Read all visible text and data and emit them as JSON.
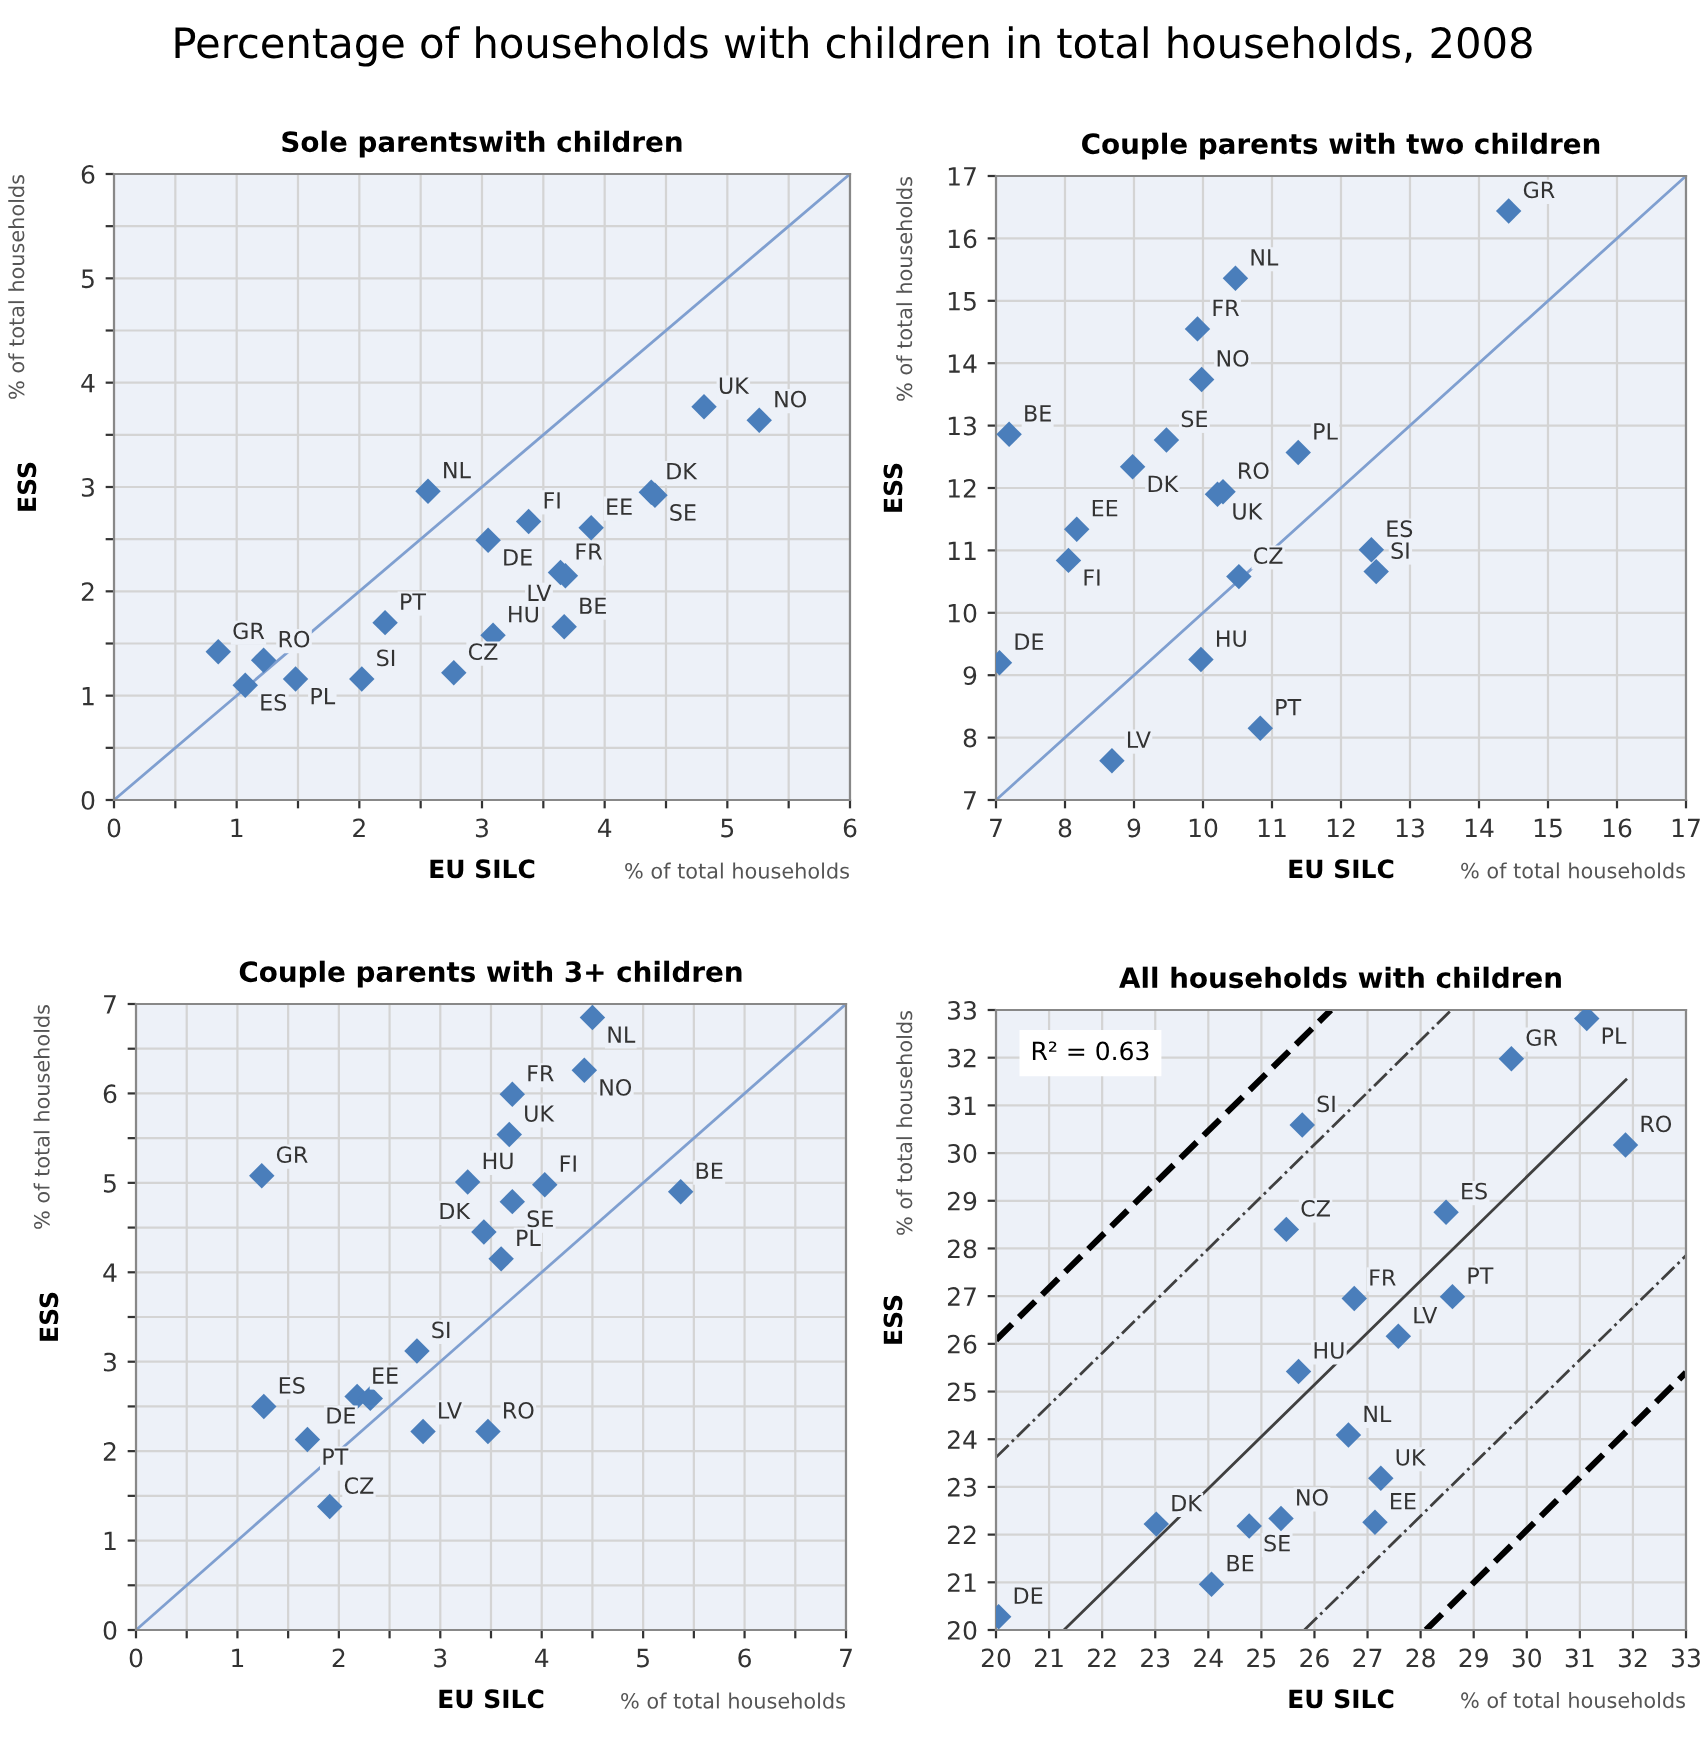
{
  "chart_data": [
    {
      "type": "other",
      "title": "Percentage of households with children in total households, 2008"
    },
    {
      "type": "scatter",
      "title": "Sole parentswith children",
      "xlabel": "EU SILC",
      "ylabel": "ESS",
      "grid": true,
      "xlim": [
        0,
        6
      ],
      "ylim": [
        0,
        6
      ],
      "xticks": [
        0,
        {
          "value": 0.5,
          "label": null
        },
        1,
        {
          "value": 1.5,
          "label": null
        },
        2,
        {
          "value": 2.5,
          "label": null
        },
        3,
        {
          "value": 3.5,
          "label": null
        },
        4,
        {
          "value": 4.5,
          "label": null
        },
        5,
        {
          "value": 5.5,
          "label": null
        },
        6
      ],
      "yticks": [
        0,
        {
          "value": 0.5,
          "label": null
        },
        1,
        {
          "value": 1.5,
          "label": null
        },
        2,
        {
          "value": 2.5,
          "label": null
        },
        3,
        {
          "value": 3.5,
          "label": null
        },
        4,
        {
          "value": 4.5,
          "label": null
        },
        5,
        {
          "value": 5.5,
          "label": null
        },
        6
      ],
      "series": [
        {
          "type": "line",
          "color": "#7f9fd0",
          "x": [
            0,
            6
          ],
          "values": [
            0,
            6
          ],
          "line_style": "solid"
        },
        {
          "type": "scatter",
          "marker": "diamond",
          "color": "#4a7ebb",
          "x": [
            0.85,
            1.22,
            1.07,
            1.48,
            2.02,
            2.21,
            2.77,
            3.09,
            3.67,
            2.56,
            3.05,
            3.38,
            3.89,
            3.64,
            3.68,
            4.38,
            4.41,
            4.81,
            5.26
          ],
          "values": [
            1.42,
            1.34,
            1.1,
            1.16,
            1.16,
            1.7,
            1.22,
            1.58,
            1.66,
            2.96,
            2.49,
            2.67,
            2.61,
            2.18,
            2.15,
            2.95,
            2.92,
            3.77,
            3.64
          ]
        }
      ],
      "annotations": [
        "% of total households",
        "% of total households",
        {
          "text": "GR",
          "x": 0.85,
          "y": 1.42
        },
        {
          "text": "RO",
          "x": 1.22,
          "y": 1.34
        },
        {
          "text": "ES",
          "x": 1.07,
          "y": 1.1
        },
        {
          "text": "PL",
          "x": 1.48,
          "y": 1.16
        },
        {
          "text": "SI",
          "x": 2.02,
          "y": 1.16
        },
        {
          "text": "PT",
          "x": 2.21,
          "y": 1.7
        },
        {
          "text": "CZ",
          "x": 2.77,
          "y": 1.22
        },
        {
          "text": "HU",
          "x": 3.09,
          "y": 1.58
        },
        {
          "text": "BE",
          "x": 3.67,
          "y": 1.66
        },
        {
          "text": "NL",
          "x": 2.56,
          "y": 2.96
        },
        {
          "text": "DE",
          "x": 3.05,
          "y": 2.49
        },
        {
          "text": "FI",
          "x": 3.38,
          "y": 2.67
        },
        {
          "text": "EE",
          "x": 3.89,
          "y": 2.61
        },
        {
          "text": "FR",
          "x": 3.64,
          "y": 2.18
        },
        {
          "text": "LV",
          "x": 3.68,
          "y": 2.15
        },
        {
          "text": "DK",
          "x": 4.38,
          "y": 2.95
        },
        {
          "text": "SE",
          "x": 4.41,
          "y": 2.92
        },
        {
          "text": "UK",
          "x": 4.81,
          "y": 3.77
        },
        {
          "text": "NO",
          "x": 5.26,
          "y": 3.64
        }
      ]
    },
    {
      "type": "scatter",
      "title": "Couple parents with two children",
      "xlabel": "EU SILC",
      "ylabel": "ESS",
      "grid": true,
      "xlim": [
        7,
        17
      ],
      "ylim": [
        7,
        17
      ],
      "xticks": [
        7,
        8,
        9,
        10,
        11,
        12,
        13,
        14,
        15,
        16,
        17
      ],
      "yticks": [
        7,
        8,
        9,
        10,
        11,
        12,
        13,
        14,
        15,
        16,
        17
      ],
      "series": [
        {
          "type": "line",
          "color": "#7f9fd0",
          "x": [
            7,
            17
          ],
          "values": [
            7,
            17
          ],
          "line_style": "solid"
        },
        {
          "type": "scatter",
          "marker": "diamond",
          "color": "#4a7ebb",
          "x": [
            14.43,
            10.47,
            9.92,
            9.98,
            7.19,
            9.47,
            8.98,
            10.29,
            10.21,
            11.38,
            8.17,
            8.05,
            12.44,
            12.51,
            10.52,
            7.05,
            9.97,
            10.83,
            8.68
          ],
          "values": [
            16.44,
            15.36,
            14.55,
            13.74,
            12.86,
            12.77,
            12.34,
            11.94,
            11.9,
            12.57,
            11.34,
            10.84,
            11.01,
            10.66,
            10.58,
            9.2,
            9.25,
            8.15,
            7.63
          ]
        }
      ],
      "annotations": [
        "% of total households",
        "% of total households",
        {
          "text": "GR",
          "x": 14.43,
          "y": 16.44
        },
        {
          "text": "NL",
          "x": 10.47,
          "y": 15.36
        },
        {
          "text": "FR",
          "x": 9.92,
          "y": 14.55
        },
        {
          "text": "NO",
          "x": 9.98,
          "y": 13.74
        },
        {
          "text": "BE",
          "x": 7.19,
          "y": 12.86
        },
        {
          "text": "SE",
          "x": 9.47,
          "y": 12.77
        },
        {
          "text": "DK",
          "x": 8.98,
          "y": 12.34
        },
        {
          "text": "RO",
          "x": 10.29,
          "y": 11.94
        },
        {
          "text": "UK",
          "x": 10.21,
          "y": 11.9
        },
        {
          "text": "PL",
          "x": 11.38,
          "y": 12.57
        },
        {
          "text": "EE",
          "x": 8.17,
          "y": 11.34
        },
        {
          "text": "FI",
          "x": 8.05,
          "y": 10.84
        },
        {
          "text": "ES",
          "x": 12.44,
          "y": 11.01
        },
        {
          "text": "SI",
          "x": 12.51,
          "y": 10.66
        },
        {
          "text": "CZ",
          "x": 10.52,
          "y": 10.58
        },
        {
          "text": "DE",
          "x": 7.05,
          "y": 9.2
        },
        {
          "text": "HU",
          "x": 9.97,
          "y": 9.25
        },
        {
          "text": "PT",
          "x": 10.83,
          "y": 8.15
        },
        {
          "text": "LV",
          "x": 8.68,
          "y": 7.63
        }
      ]
    },
    {
      "type": "scatter",
      "title": "Couple parents with 3+ children",
      "xlabel": "EU SILC",
      "ylabel": "ESS",
      "grid": true,
      "xlim": [
        0,
        7
      ],
      "ylim": [
        0,
        7
      ],
      "xticks": [
        0,
        {
          "value": 0.5,
          "label": null
        },
        1,
        {
          "value": 1.5,
          "label": null
        },
        2,
        {
          "value": 2.5,
          "label": null
        },
        3,
        {
          "value": 3.5,
          "label": null
        },
        4,
        {
          "value": 4.5,
          "label": null
        },
        5,
        {
          "value": 5.5,
          "label": null
        },
        6,
        {
          "value": 6.5,
          "label": null
        },
        7
      ],
      "yticks": [
        0,
        {
          "value": 0.5,
          "label": null
        },
        1,
        {
          "value": 1.5,
          "label": null
        },
        2,
        {
          "value": 2.5,
          "label": null
        },
        3,
        {
          "value": 3.5,
          "label": null
        },
        4,
        {
          "value": 4.5,
          "label": null
        },
        5,
        {
          "value": 5.5,
          "label": null
        },
        6,
        {
          "value": 6.5,
          "label": null
        },
        7
      ],
      "series": [
        {
          "type": "line",
          "color": "#7f9fd0",
          "x": [
            0,
            7
          ],
          "values": [
            0,
            7
          ],
          "line_style": "solid"
        },
        {
          "type": "scatter",
          "marker": "diamond",
          "color": "#4a7ebb",
          "x": [
            4.5,
            4.42,
            3.71,
            3.68,
            1.24,
            3.27,
            4.03,
            3.71,
            5.37,
            3.43,
            3.6,
            2.77,
            2.18,
            2.31,
            1.26,
            1.69,
            2.83,
            3.47,
            1.91
          ],
          "values": [
            6.85,
            6.26,
            5.99,
            5.54,
            5.08,
            5.01,
            4.98,
            4.79,
            4.9,
            4.45,
            4.15,
            3.12,
            2.61,
            2.59,
            2.5,
            2.13,
            2.22,
            2.22,
            1.38
          ]
        }
      ],
      "annotations": [
        "% of total households",
        "% of total households",
        {
          "text": "NL",
          "x": 4.5,
          "y": 6.85
        },
        {
          "text": "NO",
          "x": 4.42,
          "y": 6.26
        },
        {
          "text": "FR",
          "x": 3.71,
          "y": 5.99
        },
        {
          "text": "UK",
          "x": 3.68,
          "y": 5.54
        },
        {
          "text": "GR",
          "x": 1.24,
          "y": 5.08
        },
        {
          "text": "HU",
          "x": 3.27,
          "y": 5.01
        },
        {
          "text": "FI",
          "x": 4.03,
          "y": 4.98
        },
        {
          "text": "SE",
          "x": 3.71,
          "y": 4.79
        },
        {
          "text": "BE",
          "x": 5.37,
          "y": 4.9
        },
        {
          "text": "DK",
          "x": 3.43,
          "y": 4.45
        },
        {
          "text": "PL",
          "x": 3.6,
          "y": 4.15
        },
        {
          "text": "SI",
          "x": 2.77,
          "y": 3.12
        },
        {
          "text": "EE",
          "x": 2.18,
          "y": 2.61
        },
        {
          "text": "DE",
          "x": 2.31,
          "y": 2.59
        },
        {
          "text": "ES",
          "x": 1.26,
          "y": 2.5
        },
        {
          "text": "PT",
          "x": 1.69,
          "y": 2.13
        },
        {
          "text": "LV",
          "x": 2.83,
          "y": 2.22
        },
        {
          "text": "RO",
          "x": 3.47,
          "y": 2.22
        },
        {
          "text": "CZ",
          "x": 1.91,
          "y": 1.38
        }
      ]
    },
    {
      "type": "scatter",
      "title": "All households with children",
      "xlabel": "EU SILC",
      "ylabel": "ESS",
      "grid": true,
      "xlim": [
        20,
        33
      ],
      "ylim": [
        20,
        33
      ],
      "xticks": [
        20,
        21,
        22,
        23,
        24,
        25,
        26,
        27,
        28,
        29,
        30,
        31,
        32,
        33
      ],
      "yticks": [
        20,
        21,
        22,
        23,
        24,
        25,
        26,
        27,
        28,
        29,
        30,
        31,
        32,
        33
      ],
      "series": [
        {
          "type": "line",
          "color": "#000000",
          "x": [
            20,
            26.31
          ],
          "values": [
            26.08,
            33
          ],
          "line_style": "dashed"
        },
        {
          "type": "line",
          "color": "#404040",
          "x": [
            20,
            28.58
          ],
          "values": [
            23.62,
            33
          ],
          "line_style": "dashdot"
        },
        {
          "type": "line",
          "color": "#404040",
          "x": [
            21.28,
            31.87
          ],
          "values": [
            20,
            31.54
          ],
          "line_style": "solid"
        },
        {
          "type": "line",
          "color": "#404040",
          "x": [
            25.81,
            33
          ],
          "values": [
            20,
            27.85
          ],
          "line_style": "dashdot"
        },
        {
          "type": "line",
          "color": "#000000",
          "x": [
            28.1,
            33
          ],
          "values": [
            20,
            25.4
          ],
          "line_style": "dashed"
        },
        {
          "type": "scatter",
          "marker": "diamond",
          "color": "#4a7ebb",
          "x": [
            31.13,
            29.71,
            25.77,
            31.86,
            28.48,
            25.47,
            26.75,
            28.6,
            27.58,
            25.7,
            26.64,
            27.25,
            24.77,
            25.37,
            27.14,
            23.02,
            24.06,
            20.05
          ],
          "values": [
            32.82,
            31.98,
            30.59,
            30.17,
            28.76,
            28.4,
            26.95,
            26.99,
            26.16,
            25.42,
            24.09,
            23.18,
            22.18,
            22.34,
            22.26,
            22.22,
            20.96,
            20.28
          ]
        }
      ],
      "annotations": [
        "% of total households",
        "% of total households",
        "R² = 0.63",
        {
          "text": "PL",
          "x": 31.13,
          "y": 32.82
        },
        {
          "text": "GR",
          "x": 29.71,
          "y": 31.98
        },
        {
          "text": "SI",
          "x": 25.77,
          "y": 30.59
        },
        {
          "text": "RO",
          "x": 31.86,
          "y": 30.17
        },
        {
          "text": "ES",
          "x": 28.48,
          "y": 28.76
        },
        {
          "text": "CZ",
          "x": 25.47,
          "y": 28.4
        },
        {
          "text": "FR",
          "x": 26.75,
          "y": 26.95
        },
        {
          "text": "PT",
          "x": 28.6,
          "y": 26.99
        },
        {
          "text": "LV",
          "x": 27.58,
          "y": 26.16
        },
        {
          "text": "HU",
          "x": 25.7,
          "y": 25.42
        },
        {
          "text": "NL",
          "x": 26.64,
          "y": 24.09
        },
        {
          "text": "UK",
          "x": 27.25,
          "y": 23.18
        },
        {
          "text": "SE",
          "x": 24.77,
          "y": 22.18
        },
        {
          "text": "NO",
          "x": 25.37,
          "y": 22.34
        },
        {
          "text": "EE",
          "x": 27.14,
          "y": 22.26
        },
        {
          "text": "DK",
          "x": 23.02,
          "y": 22.22
        },
        {
          "text": "BE",
          "x": 24.06,
          "y": 20.96
        },
        {
          "text": "DE",
          "x": 20.05,
          "y": 20.28
        }
      ]
    }
  ]
}
